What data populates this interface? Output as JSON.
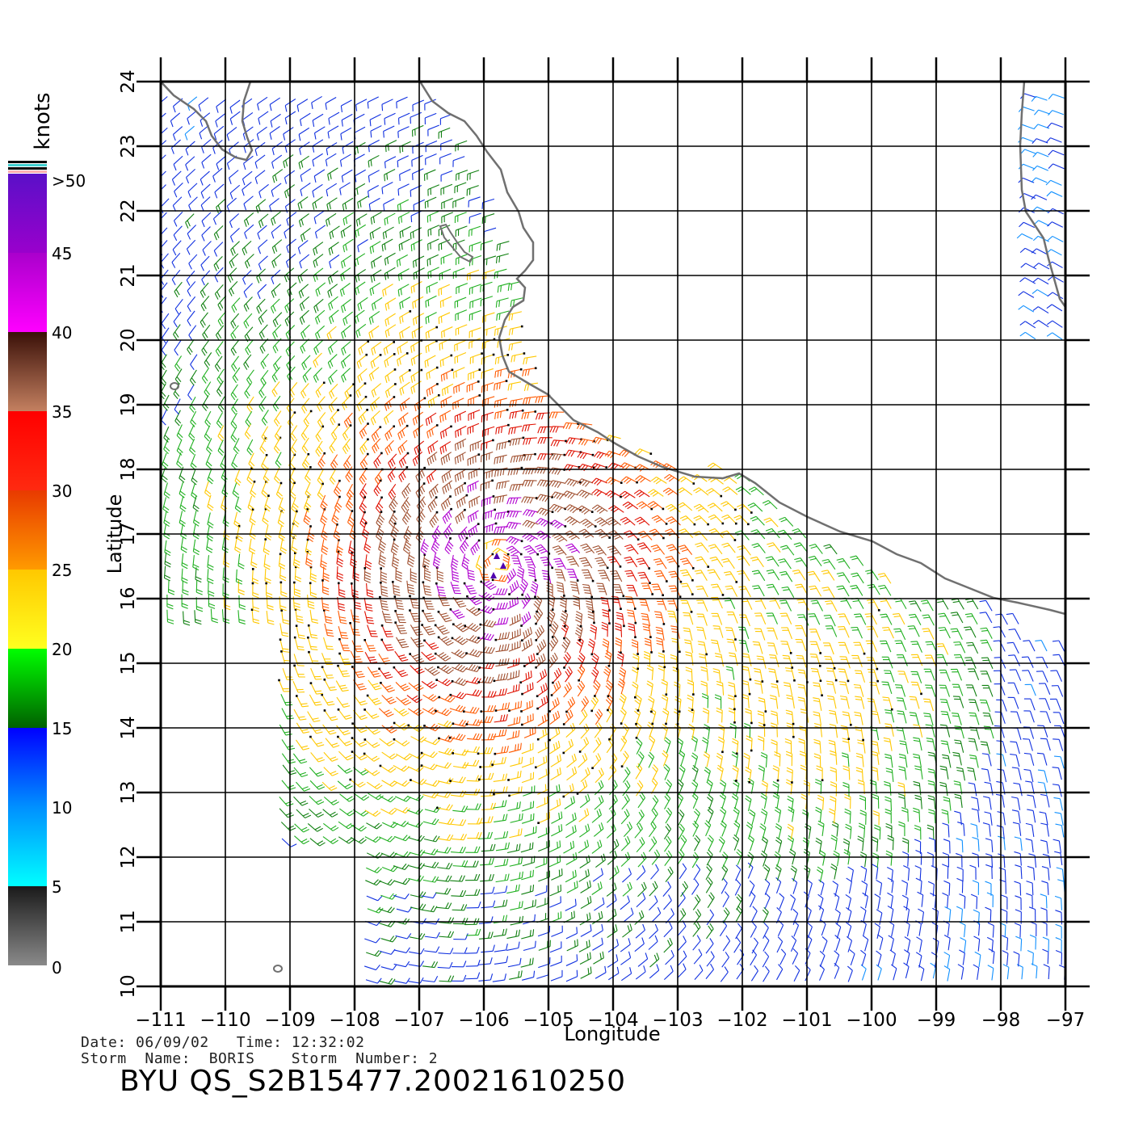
{
  "legend": {
    "unit": "knots",
    "labels": [
      ">50",
      "45",
      "40",
      "35",
      "30",
      "25",
      "20",
      "15",
      "10",
      "5",
      "0"
    ],
    "bands": [
      {
        "from": 45,
        "to": 50,
        "colors": [
          "#5a10c8",
          "#9a00cc"
        ]
      },
      {
        "from": 40,
        "to": 45,
        "colors": [
          "#aa00cc",
          "#ff00ff"
        ]
      },
      {
        "from": 35,
        "to": 40,
        "colors": [
          "#3a1008",
          "#c48060"
        ]
      },
      {
        "from": 30,
        "to": 35,
        "colors": [
          "#ff0000",
          "#ff2a10"
        ]
      },
      {
        "from": 25,
        "to": 30,
        "colors": [
          "#e83a00",
          "#ff9a00"
        ]
      },
      {
        "from": 20,
        "to": 25,
        "colors": [
          "#ffc800",
          "#ffff20"
        ]
      },
      {
        "from": 15,
        "to": 20,
        "colors": [
          "#00ff00",
          "#006000"
        ]
      },
      {
        "from": 10,
        "to": 15,
        "colors": [
          "#0000ff",
          "#0090ff"
        ]
      },
      {
        "from": 5,
        "to": 10,
        "colors": [
          "#0090ff",
          "#00ffff"
        ]
      },
      {
        "from": 0,
        "to": 5,
        "colors": [
          "#1a1a1a",
          "#8a8a8a"
        ]
      }
    ]
  },
  "axes": {
    "xlabel": "Longitude",
    "ylabel": "Latitude",
    "lon_ticks": [
      "−111",
      "−110",
      "−109",
      "−108",
      "−107",
      "−106",
      "−105",
      "−104",
      "−103",
      "−102",
      "−101",
      "−100",
      "−99",
      "−98",
      "−97"
    ],
    "lat_ticks": [
      "10",
      "11",
      "12",
      "13",
      "14",
      "15",
      "16",
      "17",
      "18",
      "19",
      "20",
      "21",
      "22",
      "23",
      "24"
    ],
    "lon_range": [
      -111,
      -97
    ],
    "lat_range": [
      10,
      24
    ]
  },
  "storm_center": {
    "lon": -105.8,
    "lat": 16.6
  },
  "footer": {
    "date_line": "Date: 06/09/02   Time: 12:32:02",
    "storm_line": "Storm  Name:  BORIS    Storm  Number: 2",
    "title": "BYU  QS_S2B15477.20021610250"
  },
  "colors": {
    "grid": "#000000",
    "coast": "#707070"
  }
}
